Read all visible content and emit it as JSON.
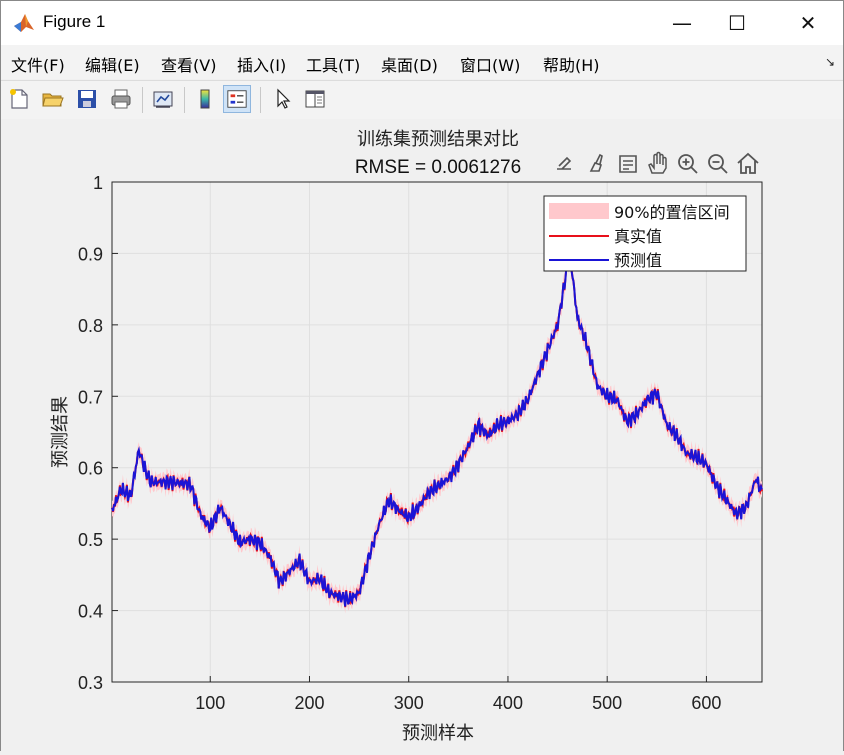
{
  "window": {
    "title": "Figure 1",
    "minimize_glyph": "—",
    "maximize_glyph": "☐",
    "close_glyph": "✕"
  },
  "menu": {
    "items": [
      "文件(F)",
      "编辑(E)",
      "查看(V)",
      "插入(I)",
      "工具(T)",
      "桌面(D)",
      "窗口(W)",
      "帮助(H)"
    ],
    "overflow_glyph": "↘"
  },
  "toolbar": {
    "icons": [
      "new-figure-icon",
      "open-file-icon",
      "save-icon",
      "print-icon",
      "link-plot-icon",
      "insert-colorbar-icon",
      "insert-legend-icon",
      "edit-plot-icon",
      "property-inspector-icon"
    ]
  },
  "axes_toolbar": {
    "icons": [
      "export-icon",
      "brush-icon",
      "data-tips-icon",
      "pan-icon",
      "zoom-in-icon",
      "zoom-out-icon",
      "home-icon"
    ]
  },
  "colors": {
    "true_line": "#e8101a",
    "pred_line": "#1a14d6",
    "band": "#ffc8cc"
  },
  "chart_data": {
    "type": "line",
    "title": "训练集预测结果对比",
    "subtitle": "RMSE = 0.0061276",
    "xlabel": "预测样本",
    "ylabel": "预测结果",
    "xlim": [
      1,
      656
    ],
    "ylim": [
      0.3,
      1.0
    ],
    "xticks": [
      100,
      200,
      300,
      400,
      500,
      600
    ],
    "yticks": [
      0.3,
      0.4,
      0.5,
      0.6,
      0.7,
      0.8,
      0.9,
      1
    ],
    "ytick_labels": [
      "0.3",
      "0.4",
      "0.5",
      "0.6",
      "0.7",
      "0.8",
      "0.9",
      "1"
    ],
    "grid": true,
    "legend_position": "top-right",
    "series": [
      {
        "name": "90%的置信区间",
        "kind": "band"
      },
      {
        "name": "真实值",
        "kind": "line"
      },
      {
        "name": "预测值",
        "kind": "line"
      }
    ],
    "x": [
      1,
      10,
      20,
      28,
      35,
      40,
      60,
      80,
      90,
      100,
      110,
      120,
      130,
      140,
      150,
      160,
      170,
      180,
      190,
      200,
      210,
      220,
      230,
      240,
      250,
      260,
      270,
      280,
      290,
      300,
      310,
      320,
      330,
      340,
      350,
      360,
      370,
      380,
      390,
      400,
      410,
      420,
      430,
      440,
      450,
      455,
      462,
      470,
      480,
      490,
      500,
      510,
      520,
      530,
      540,
      550,
      560,
      570,
      580,
      590,
      600,
      610,
      620,
      630,
      640,
      650,
      656
    ],
    "y": [
      0.54,
      0.57,
      0.56,
      0.625,
      0.595,
      0.58,
      0.58,
      0.577,
      0.535,
      0.515,
      0.545,
      0.52,
      0.495,
      0.5,
      0.495,
      0.475,
      0.44,
      0.455,
      0.47,
      0.44,
      0.445,
      0.425,
      0.42,
      0.415,
      0.425,
      0.475,
      0.52,
      0.555,
      0.54,
      0.53,
      0.545,
      0.565,
      0.575,
      0.585,
      0.605,
      0.63,
      0.66,
      0.645,
      0.66,
      0.665,
      0.675,
      0.695,
      0.73,
      0.765,
      0.8,
      0.84,
      0.905,
      0.81,
      0.77,
      0.715,
      0.7,
      0.695,
      0.665,
      0.675,
      0.695,
      0.705,
      0.66,
      0.645,
      0.62,
      0.615,
      0.605,
      0.575,
      0.555,
      0.535,
      0.545,
      0.585,
      0.565
    ]
  }
}
